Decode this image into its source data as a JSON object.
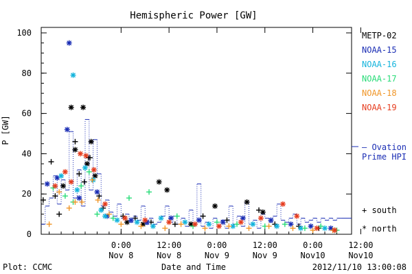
{
  "chart_data": {
    "type": "scatter",
    "title": "Hemispheric Power [GW]",
    "ylabel": "P [GW]",
    "xlabel": "Date and Time",
    "ylim": [
      0,
      100
    ],
    "yticks": [
      0,
      20,
      40,
      60,
      80,
      100
    ],
    "xlim_hours": [
      -20,
      55
    ],
    "x_hour_ticks": [
      0,
      12,
      24,
      36,
      48,
      60
    ],
    "x_tick_labels": [
      [
        "0:00",
        "Nov 8"
      ],
      [
        "12:00",
        "Nov 8"
      ],
      [
        "0:00",
        "Nov 9"
      ],
      [
        "12:00",
        "Nov 9"
      ],
      [
        "0:00",
        "Nov10"
      ],
      [
        "12:00",
        "Nov10"
      ]
    ],
    "footer_left": "Plot: CCMC",
    "footer_right": "2012/11/10 13:00:08",
    "legend_location": "right",
    "satellites": [
      {
        "name": "METP-02",
        "color": "#000000"
      },
      {
        "name": "NOAA-15",
        "color": "#1a2db4"
      },
      {
        "name": "NOAA-16",
        "color": "#14b4dc"
      },
      {
        "name": "NOAA-17",
        "color": "#28dc78"
      },
      {
        "name": "NOAA-18",
        "color": "#f09628"
      },
      {
        "name": "NOAA-19",
        "color": "#e63c1e"
      }
    ],
    "ovation_label": [
      "– Ovation",
      "Prime HPI"
    ],
    "ovation_color": "#1a2db4",
    "symbol_key": [
      {
        "symbol": "+",
        "label": "south"
      },
      {
        "symbol": "*",
        "label": "north"
      }
    ],
    "ovation_step": [
      [
        -20,
        5
      ],
      [
        -19,
        14
      ],
      [
        -18,
        18
      ],
      [
        -17,
        29
      ],
      [
        -16,
        15
      ],
      [
        -15,
        27
      ],
      [
        -14,
        22
      ],
      [
        -13,
        51
      ],
      [
        -12,
        18
      ],
      [
        -11,
        32
      ],
      [
        -10,
        14
      ],
      [
        -9,
        57
      ],
      [
        -8,
        22
      ],
      [
        -7,
        47
      ],
      [
        -6,
        30
      ],
      [
        -5,
        14
      ],
      [
        -4,
        17
      ],
      [
        -3,
        11
      ],
      [
        -2,
        9
      ],
      [
        -1,
        15
      ],
      [
        0,
        8
      ],
      [
        1,
        10
      ],
      [
        2,
        6
      ],
      [
        3,
        9
      ],
      [
        4,
        7
      ],
      [
        5,
        14
      ],
      [
        6,
        5
      ],
      [
        7,
        8
      ],
      [
        8,
        5
      ],
      [
        9,
        6
      ],
      [
        10,
        9
      ],
      [
        11,
        14
      ],
      [
        12,
        6
      ],
      [
        13,
        9
      ],
      [
        14,
        5
      ],
      [
        15,
        8
      ],
      [
        16,
        4
      ],
      [
        17,
        12
      ],
      [
        18,
        5
      ],
      [
        19,
        25
      ],
      [
        20,
        4
      ],
      [
        21,
        6
      ],
      [
        22,
        3
      ],
      [
        23,
        8
      ],
      [
        24,
        4
      ],
      [
        25,
        7
      ],
      [
        26,
        3
      ],
      [
        27,
        14
      ],
      [
        28,
        5
      ],
      [
        29,
        9
      ],
      [
        30,
        4
      ],
      [
        31,
        16
      ],
      [
        32,
        5
      ],
      [
        33,
        7
      ],
      [
        34,
        3
      ],
      [
        35,
        10
      ],
      [
        36,
        8
      ],
      [
        37,
        6
      ],
      [
        38,
        9
      ],
      [
        39,
        15
      ],
      [
        40,
        7
      ],
      [
        41,
        6
      ],
      [
        42,
        8
      ],
      [
        43,
        10
      ],
      [
        44,
        5
      ],
      [
        45,
        8
      ],
      [
        46,
        6
      ],
      [
        47,
        7
      ],
      [
        48,
        8
      ],
      [
        49,
        6
      ],
      [
        50,
        8
      ],
      [
        51,
        7
      ],
      [
        52,
        8
      ],
      [
        53,
        7
      ],
      [
        54,
        8
      ],
      [
        55,
        8
      ]
    ],
    "series": [
      {
        "name": "METP-02",
        "symbol": "star",
        "points": [
          [
            -12.5,
            63
          ],
          [
            -9.5,
            63
          ],
          [
            -8.5,
            35
          ],
          [
            -7.5,
            46
          ],
          [
            -6.5,
            29
          ],
          [
            9.5,
            26
          ],
          [
            11.5,
            22
          ],
          [
            23.5,
            14
          ],
          [
            31.5,
            16
          ],
          [
            35.5,
            11
          ],
          [
            -14.5,
            24
          ],
          [
            -11.5,
            42
          ],
          [
            1.5,
            6
          ],
          [
            5.5,
            5
          ],
          [
            17.5,
            5
          ]
        ]
      },
      {
        "name": "METP-02",
        "symbol": "plus",
        "points": [
          [
            -19.5,
            17
          ],
          [
            -17.5,
            36
          ],
          [
            -16.5,
            19
          ],
          [
            -15.5,
            10
          ],
          [
            -11.5,
            46
          ],
          [
            -10.5,
            30
          ],
          [
            -9.2,
            26
          ],
          [
            -8.2,
            38
          ],
          [
            -7.8,
            38
          ],
          [
            -5.5,
            19
          ],
          [
            -4.5,
            13
          ],
          [
            0.5,
            9
          ],
          [
            3.5,
            8
          ],
          [
            7.5,
            6
          ],
          [
            13.5,
            5
          ],
          [
            20.5,
            9
          ],
          [
            26.5,
            7
          ],
          [
            34.5,
            12
          ],
          [
            38.5,
            5
          ],
          [
            44.5,
            4
          ],
          [
            49.5,
            3
          ],
          [
            53.5,
            2
          ]
        ]
      },
      {
        "name": "NOAA-15",
        "symbol": "star",
        "points": [
          [
            -13.0,
            95
          ],
          [
            -13.5,
            52
          ],
          [
            -18.5,
            25
          ],
          [
            -16.0,
            28
          ],
          [
            -10.5,
            18
          ],
          [
            -6.0,
            21
          ],
          [
            -3.5,
            9
          ],
          [
            2.5,
            7
          ],
          [
            6.5,
            6
          ],
          [
            12.5,
            8
          ],
          [
            19.5,
            7
          ],
          [
            25.5,
            6
          ],
          [
            30.5,
            8
          ],
          [
            37.5,
            7
          ],
          [
            42.5,
            5
          ],
          [
            47.5,
            4
          ],
          [
            52.5,
            3
          ]
        ]
      },
      {
        "name": "NOAA-16",
        "symbol": "star",
        "points": [
          [
            -12.0,
            79
          ],
          [
            -15.0,
            29
          ],
          [
            -11.0,
            22
          ],
          [
            -9.0,
            33
          ],
          [
            -7.0,
            27
          ],
          [
            -5.0,
            12
          ],
          [
            -1.0,
            7
          ],
          [
            4.0,
            6
          ],
          [
            10.0,
            8
          ],
          [
            16.0,
            6
          ],
          [
            22.0,
            5
          ],
          [
            28.0,
            4
          ],
          [
            33.0,
            5
          ],
          [
            39.0,
            4
          ],
          [
            45.0,
            3
          ],
          [
            51.0,
            3
          ],
          [
            -4.0,
            9
          ],
          [
            8.0,
            4
          ]
        ]
      },
      {
        "name": "NOAA-17",
        "symbol": "plus",
        "points": [
          [
            -17.0,
            23
          ],
          [
            -14.0,
            19
          ],
          [
            -10.0,
            24
          ],
          [
            -8.0,
            31
          ],
          [
            -6.0,
            10
          ],
          [
            2.0,
            18
          ],
          [
            7.0,
            21
          ],
          [
            -2.0,
            8
          ],
          [
            14.0,
            9
          ],
          [
            18.0,
            4
          ],
          [
            24.0,
            6
          ],
          [
            29.0,
            5
          ],
          [
            36.0,
            4
          ],
          [
            41.0,
            5
          ],
          [
            46.0,
            3
          ],
          [
            50.0,
            4
          ],
          [
            54.0,
            2
          ],
          [
            -12.0,
            16
          ]
        ]
      },
      {
        "name": "NOAA-18",
        "symbol": "plus",
        "points": [
          [
            -18.0,
            5
          ],
          [
            -15.5,
            21
          ],
          [
            -13.0,
            13
          ],
          [
            -11.5,
            16
          ],
          [
            -9.8,
            16
          ],
          [
            -7.2,
            27
          ],
          [
            -5.8,
            17
          ],
          [
            -3.0,
            10
          ],
          [
            0.0,
            5
          ],
          [
            5.0,
            4
          ],
          [
            11.0,
            3
          ],
          [
            15.0,
            5
          ],
          [
            21.0,
            3
          ],
          [
            27.0,
            4
          ],
          [
            32.0,
            3
          ],
          [
            37.0,
            4
          ],
          [
            43.0,
            3
          ],
          [
            48.0,
            2
          ],
          [
            53.0,
            2
          ]
        ]
      },
      {
        "name": "NOAA-19",
        "symbol": "star",
        "points": [
          [
            -16.5,
            24
          ],
          [
            -14.0,
            31
          ],
          [
            -10.2,
            40
          ],
          [
            -8.8,
            39
          ],
          [
            -6.8,
            32
          ],
          [
            -4.0,
            15
          ],
          [
            1.0,
            8
          ],
          [
            6.0,
            7
          ],
          [
            12.0,
            6
          ],
          [
            18.5,
            5
          ],
          [
            24.5,
            4
          ],
          [
            30.0,
            6
          ],
          [
            35.0,
            8
          ],
          [
            40.5,
            15
          ],
          [
            44.0,
            9
          ],
          [
            49.0,
            3
          ],
          [
            53.5,
            2
          ],
          [
            -12.5,
            26
          ]
        ]
      }
    ]
  }
}
